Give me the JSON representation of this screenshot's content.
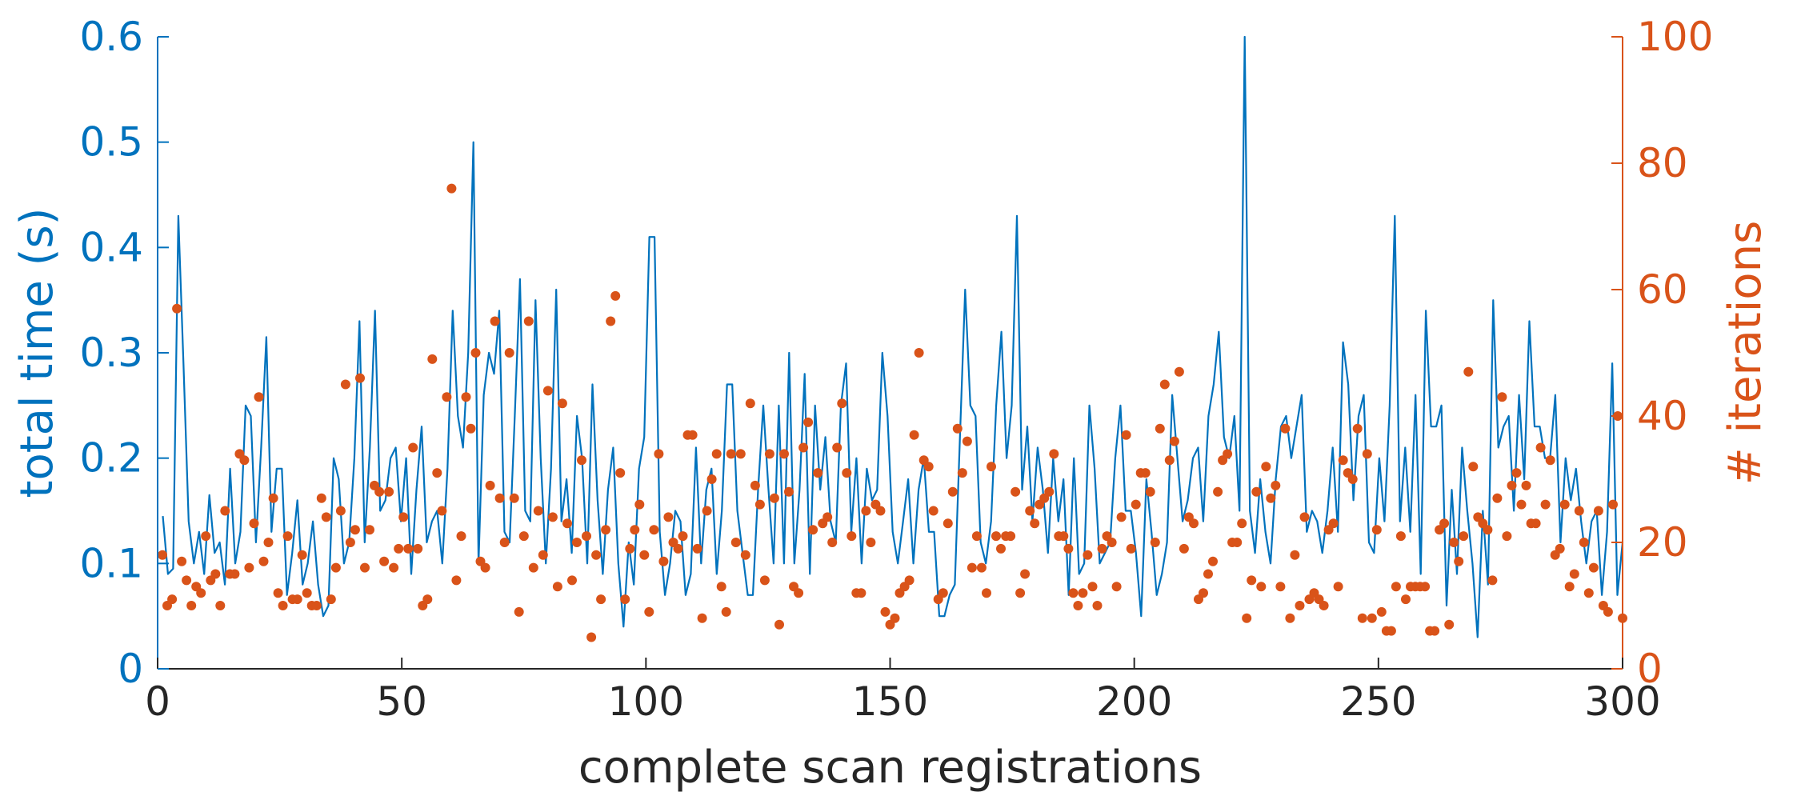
{
  "chart_data": {
    "type": "line",
    "xlabel": "complete scan registrations",
    "ylabel_left": "total time (s)",
    "ylabel_right": "# iterations",
    "xlim": [
      0,
      300
    ],
    "ylim_left": [
      0,
      0.6
    ],
    "ylim_right": [
      0,
      100
    ],
    "xticks": [
      "0",
      "50",
      "100",
      "150",
      "200",
      "250",
      "300"
    ],
    "yticks_left": [
      "0",
      "0.1",
      "0.2",
      "0.3",
      "0.4",
      "0.5",
      "0.6"
    ],
    "yticks_right": [
      "0",
      "20",
      "40",
      "60",
      "80",
      "100"
    ],
    "grid": false,
    "colors": {
      "left_axis": "#0072BD",
      "right_axis": "#D95319",
      "text": "#262626"
    },
    "series": [
      {
        "name": "total time (s)",
        "axis": "left",
        "style": "line",
        "values": [
          0.145,
          0.09,
          0.095,
          0.43,
          0.29,
          0.14,
          0.1,
          0.13,
          0.09,
          0.165,
          0.11,
          0.12,
          0.08,
          0.19,
          0.1,
          0.13,
          0.25,
          0.24,
          0.12,
          0.21,
          0.315,
          0.13,
          0.19,
          0.19,
          0.07,
          0.11,
          0.16,
          0.08,
          0.1,
          0.14,
          0.08,
          0.05,
          0.06,
          0.2,
          0.18,
          0.1,
          0.12,
          0.2,
          0.33,
          0.12,
          0.21,
          0.34,
          0.15,
          0.16,
          0.2,
          0.21,
          0.14,
          0.2,
          0.09,
          0.17,
          0.23,
          0.12,
          0.14,
          0.15,
          0.1,
          0.19,
          0.34,
          0.24,
          0.21,
          0.3,
          0.5,
          0.1,
          0.26,
          0.3,
          0.28,
          0.34,
          0.13,
          0.12,
          0.24,
          0.37,
          0.15,
          0.14,
          0.35,
          0.2,
          0.1,
          0.19,
          0.36,
          0.14,
          0.18,
          0.11,
          0.24,
          0.2,
          0.1,
          0.27,
          0.16,
          0.09,
          0.17,
          0.21,
          0.1,
          0.04,
          0.12,
          0.08,
          0.19,
          0.22,
          0.41,
          0.41,
          0.13,
          0.07,
          0.1,
          0.15,
          0.14,
          0.07,
          0.09,
          0.21,
          0.1,
          0.17,
          0.19,
          0.09,
          0.15,
          0.27,
          0.27,
          0.15,
          0.11,
          0.07,
          0.07,
          0.17,
          0.25,
          0.17,
          0.1,
          0.25,
          0.1,
          0.3,
          0.1,
          0.17,
          0.28,
          0.09,
          0.25,
          0.17,
          0.22,
          0.14,
          0.12,
          0.25,
          0.29,
          0.13,
          0.2,
          0.1,
          0.19,
          0.16,
          0.17,
          0.3,
          0.24,
          0.13,
          0.1,
          0.14,
          0.18,
          0.1,
          0.17,
          0.2,
          0.13,
          0.13,
          0.05,
          0.05,
          0.07,
          0.08,
          0.22,
          0.36,
          0.25,
          0.24,
          0.12,
          0.1,
          0.14,
          0.25,
          0.32,
          0.2,
          0.25,
          0.43,
          0.17,
          0.23,
          0.14,
          0.21,
          0.17,
          0.11,
          0.2,
          0.14,
          0.18,
          0.07,
          0.2,
          0.09,
          0.1,
          0.25,
          0.19,
          0.1,
          0.11,
          0.12,
          0.2,
          0.25,
          0.15,
          0.15,
          0.11,
          0.05,
          0.18,
          0.13,
          0.07,
          0.09,
          0.12,
          0.26,
          0.2,
          0.14,
          0.16,
          0.2,
          0.21,
          0.14,
          0.24,
          0.27,
          0.32,
          0.22,
          0.2,
          0.24,
          0.15,
          0.6,
          0.15,
          0.11,
          0.18,
          0.13,
          0.1,
          0.18,
          0.23,
          0.24,
          0.2,
          0.23,
          0.26,
          0.13,
          0.15,
          0.14,
          0.11,
          0.15,
          0.21,
          0.13,
          0.31,
          0.27,
          0.16,
          0.24,
          0.26,
          0.12,
          0.11,
          0.2,
          0.14,
          0.25,
          0.43,
          0.14,
          0.21,
          0.13,
          0.26,
          0.09,
          0.34,
          0.23,
          0.23,
          0.25,
          0.06,
          0.17,
          0.09,
          0.21,
          0.15,
          0.1,
          0.03,
          0.15,
          0.08,
          0.35,
          0.21,
          0.23,
          0.24,
          0.15,
          0.26,
          0.18,
          0.33,
          0.23,
          0.23,
          0.2,
          0.2,
          0.26,
          0.12,
          0.2,
          0.16,
          0.19,
          0.14,
          0.1,
          0.14,
          0.15,
          0.07,
          0.13,
          0.29,
          0.07,
          0.12
        ]
      },
      {
        "name": "# iterations",
        "axis": "right",
        "style": "points",
        "values": [
          18,
          10,
          11,
          57,
          17,
          14,
          10,
          13,
          12,
          21,
          14,
          15,
          10,
          25,
          15,
          15,
          34,
          33,
          16,
          23,
          43,
          17,
          20,
          27,
          12,
          10,
          21,
          11,
          11,
          18,
          12,
          10,
          10,
          27,
          24,
          11,
          16,
          25,
          45,
          20,
          22,
          46,
          16,
          22,
          29,
          28,
          17,
          28,
          16,
          19,
          24,
          19,
          35,
          19,
          10,
          11,
          49,
          31,
          25,
          43,
          76,
          14,
          21,
          43,
          38,
          50,
          17,
          16,
          29,
          55,
          27,
          20,
          50,
          27,
          9,
          21,
          55,
          16,
          25,
          18,
          44,
          24,
          13,
          42,
          23,
          14,
          20,
          33,
          21,
          5,
          18,
          11,
          22,
          55,
          59,
          31,
          11,
          19,
          22,
          26,
          18,
          9,
          22,
          34,
          17,
          24,
          20,
          19,
          21,
          37,
          37,
          19,
          8,
          25,
          30,
          34,
          13,
          9,
          34,
          20,
          34,
          18,
          42,
          29,
          26,
          14,
          34,
          27,
          7,
          34,
          28,
          13,
          12,
          35,
          39,
          22,
          31,
          23,
          24,
          20,
          35,
          42,
          31,
          21,
          12,
          12,
          25,
          20,
          26,
          25,
          9,
          7,
          8,
          12,
          13,
          14,
          37,
          50,
          33,
          32,
          25,
          11,
          12,
          23,
          28,
          38,
          31,
          36,
          16,
          21,
          16,
          12,
          32,
          21,
          19,
          21,
          21,
          28,
          12,
          15,
          25,
          23,
          26,
          27,
          28,
          34,
          21,
          21,
          19,
          12,
          10,
          12,
          18,
          13,
          10,
          19,
          21,
          20,
          13,
          24,
          37,
          19,
          26,
          31,
          31,
          28,
          20,
          38,
          45,
          33,
          36,
          47,
          19,
          24,
          23,
          11,
          12,
          15,
          17,
          28,
          33,
          34,
          20,
          20,
          23,
          8,
          14,
          28,
          13,
          32,
          27,
          29,
          13,
          38,
          8,
          18,
          10,
          24,
          11,
          12,
          11,
          10,
          22,
          23,
          13,
          33,
          31,
          30,
          38,
          8,
          34,
          8,
          22,
          9,
          6,
          6,
          13,
          21,
          11,
          13,
          13,
          13,
          13,
          6,
          6,
          22,
          23,
          7,
          20,
          17,
          21,
          47,
          32,
          24,
          23,
          22,
          14,
          27,
          43,
          21,
          29,
          31,
          26,
          29,
          23,
          23,
          35,
          26,
          33,
          18,
          19,
          26,
          13,
          15,
          25,
          20,
          12,
          16,
          25,
          10,
          9,
          26,
          40,
          8
        ]
      }
    ]
  }
}
